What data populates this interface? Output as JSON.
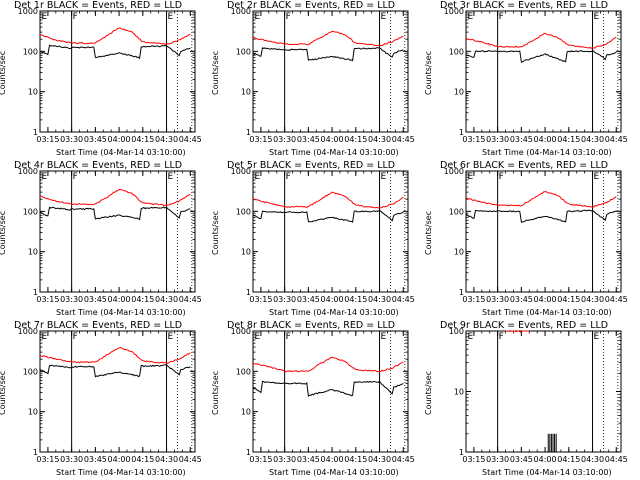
{
  "chart_data": [
    {
      "type": "line",
      "title": "Det 1r BLACK = Events, RED = LLD",
      "ylabel": "Counts/sec",
      "xlabel": "Start Time (04-Mar-14 03:10:00)",
      "x_ticks": [
        "03:15",
        "03:30",
        "03:45",
        "04:00",
        "04:15",
        "04:30",
        "04:45"
      ],
      "y_ticks": [
        "1",
        "10",
        "100",
        "1000"
      ],
      "y_scale": "log",
      "ylim": [
        1,
        1000
      ],
      "markers": [
        {
          "label": "E",
          "time": "03:10"
        },
        {
          "label": "F",
          "time": "03:30"
        },
        {
          "label": "E",
          "time": "04:30"
        }
      ],
      "series": [
        {
          "name": "BLACK = Events",
          "color": "#000000",
          "x": [
            "03:10",
            "03:15",
            "03:16",
            "03:29",
            "03:30",
            "03:44",
            "03:45",
            "04:00",
            "04:13",
            "04:14",
            "04:29",
            "04:30",
            "04:38",
            "04:39",
            "04:45"
          ],
          "y": [
            100,
            85,
            140,
            120,
            125,
            125,
            70,
            90,
            70,
            130,
            135,
            135,
            80,
            100,
            120
          ]
        },
        {
          "name": "RED = LLD",
          "color": "#ff0000",
          "x": [
            "03:10",
            "03:20",
            "03:30",
            "03:45",
            "03:52",
            "04:00",
            "04:08",
            "04:15",
            "04:30",
            "04:38",
            "04:45"
          ],
          "y": [
            260,
            190,
            160,
            160,
            240,
            380,
            300,
            170,
            150,
            190,
            270
          ]
        }
      ]
    },
    {
      "type": "line",
      "title": "Det 2r BLACK = Events, RED = LLD",
      "ylabel": "Counts/sec",
      "xlabel": "Start Time (04-Mar-14 03:10:00)",
      "x_ticks": [
        "03:15",
        "03:30",
        "03:45",
        "04:00",
        "04:15",
        "04:30",
        "04:45"
      ],
      "y_ticks": [
        "1",
        "10",
        "100",
        "1000"
      ],
      "y_scale": "log",
      "ylim": [
        1,
        1000
      ],
      "markers": [
        {
          "label": "E",
          "time": "03:10"
        },
        {
          "label": "F",
          "time": "03:30"
        },
        {
          "label": "E",
          "time": "04:30"
        }
      ],
      "series": [
        {
          "name": "BLACK = Events",
          "color": "#000000",
          "x": [
            "03:10",
            "03:15",
            "03:16",
            "03:29",
            "03:30",
            "03:44",
            "03:45",
            "04:00",
            "04:13",
            "04:14",
            "04:29",
            "04:30",
            "04:38",
            "04:39",
            "04:45"
          ],
          "y": [
            90,
            75,
            120,
            110,
            110,
            110,
            60,
            75,
            60,
            115,
            120,
            120,
            70,
            90,
            110
          ]
        },
        {
          "name": "RED = LLD",
          "color": "#ff0000",
          "x": [
            "03:10",
            "03:20",
            "03:30",
            "03:45",
            "03:52",
            "04:00",
            "04:08",
            "04:15",
            "04:30",
            "04:38",
            "04:45"
          ],
          "y": [
            220,
            180,
            150,
            150,
            210,
            320,
            260,
            160,
            140,
            170,
            240
          ]
        }
      ]
    },
    {
      "type": "line",
      "title": "Det 3r BLACK = Events, RED = LLD",
      "ylabel": "Counts/sec",
      "xlabel": "Start Time (04-Mar-14 03:10:00)",
      "x_ticks": [
        "03:15",
        "03:30",
        "03:45",
        "04:00",
        "04:15",
        "04:30",
        "04:45"
      ],
      "y_ticks": [
        "1",
        "10",
        "100",
        "1000"
      ],
      "y_scale": "log",
      "ylim": [
        1,
        1000
      ],
      "markers": [
        {
          "label": "E",
          "time": "03:10"
        },
        {
          "label": "F",
          "time": "03:30"
        },
        {
          "label": "E",
          "time": "04:30"
        }
      ],
      "series": [
        {
          "name": "BLACK = Events",
          "color": "#000000",
          "x": [
            "03:10",
            "03:15",
            "03:16",
            "03:29",
            "03:30",
            "03:44",
            "03:45",
            "04:00",
            "04:13",
            "04:14",
            "04:29",
            "04:30",
            "04:38",
            "04:39",
            "04:45"
          ],
          "y": [
            80,
            70,
            100,
            100,
            100,
            100,
            55,
            85,
            55,
            100,
            100,
            105,
            65,
            80,
            95
          ]
        },
        {
          "name": "RED = LLD",
          "color": "#ff0000",
          "x": [
            "03:10",
            "03:20",
            "03:30",
            "03:45",
            "03:52",
            "04:00",
            "04:08",
            "04:15",
            "04:30",
            "04:38",
            "04:45"
          ],
          "y": [
            210,
            170,
            130,
            130,
            180,
            280,
            220,
            140,
            120,
            150,
            220
          ]
        }
      ]
    },
    {
      "type": "line",
      "title": "Det 4r BLACK = Events, RED = LLD",
      "ylabel": "Counts/sec",
      "xlabel": "Start Time (04-Mar-14 03:10:00)",
      "x_ticks": [
        "03:15",
        "03:30",
        "03:45",
        "04:00",
        "04:15",
        "04:30",
        "04:45"
      ],
      "y_ticks": [
        "1",
        "10",
        "100",
        "1000"
      ],
      "y_scale": "log",
      "ylim": [
        1,
        1000
      ],
      "markers": [
        {
          "label": "E",
          "time": "03:10"
        },
        {
          "label": "F",
          "time": "03:30"
        },
        {
          "label": "E",
          "time": "04:30"
        }
      ],
      "series": [
        {
          "name": "BLACK = Events",
          "color": "#000000",
          "x": [
            "03:10",
            "03:15",
            "03:16",
            "03:29",
            "03:30",
            "03:44",
            "03:45",
            "04:00",
            "04:13",
            "04:14",
            "04:29",
            "04:30",
            "04:38",
            "04:39",
            "04:45"
          ],
          "y": [
            95,
            75,
            125,
            110,
            115,
            115,
            65,
            80,
            65,
            120,
            125,
            125,
            70,
            95,
            115
          ]
        },
        {
          "name": "RED = LLD",
          "color": "#ff0000",
          "x": [
            "03:10",
            "03:20",
            "03:30",
            "03:45",
            "03:52",
            "04:00",
            "04:08",
            "04:15",
            "04:30",
            "04:38",
            "04:45"
          ],
          "y": [
            240,
            180,
            150,
            150,
            220,
            350,
            280,
            160,
            140,
            180,
            260
          ]
        }
      ]
    },
    {
      "type": "line",
      "title": "Det 5r BLACK = Events, RED = LLD",
      "ylabel": "Counts/sec",
      "xlabel": "Start Time (04-Mar-14 03:10:00)",
      "x_ticks": [
        "03:15",
        "03:30",
        "03:45",
        "04:00",
        "04:15",
        "04:30",
        "04:45"
      ],
      "y_ticks": [
        "1",
        "10",
        "100",
        "1000"
      ],
      "y_scale": "log",
      "ylim": [
        1,
        1000
      ],
      "markers": [
        {
          "label": "E",
          "time": "03:10"
        },
        {
          "label": "F",
          "time": "03:30"
        },
        {
          "label": "E",
          "time": "04:30"
        }
      ],
      "series": [
        {
          "name": "BLACK = Events",
          "color": "#000000",
          "x": [
            "03:10",
            "03:15",
            "03:16",
            "03:29",
            "03:30",
            "03:44",
            "03:45",
            "04:00",
            "04:13",
            "04:14",
            "04:29",
            "04:30",
            "04:38",
            "04:39",
            "04:45"
          ],
          "y": [
            80,
            65,
            100,
            95,
            95,
            95,
            55,
            70,
            55,
            100,
            100,
            105,
            60,
            80,
            95
          ]
        },
        {
          "name": "RED = LLD",
          "color": "#ff0000",
          "x": [
            "03:10",
            "03:20",
            "03:30",
            "03:45",
            "03:52",
            "04:00",
            "04:08",
            "04:15",
            "04:30",
            "04:38",
            "04:45"
          ],
          "y": [
            200,
            160,
            130,
            130,
            190,
            300,
            240,
            140,
            120,
            150,
            220
          ]
        }
      ]
    },
    {
      "type": "line",
      "title": "Det 6r BLACK = Events, RED = LLD",
      "ylabel": "Counts/sec",
      "xlabel": "Start Time (04-Mar-14 03:10:00)",
      "x_ticks": [
        "03:15",
        "03:30",
        "03:45",
        "04:00",
        "04:15",
        "04:30",
        "04:45"
      ],
      "y_ticks": [
        "1",
        "10",
        "100",
        "1000"
      ],
      "y_scale": "log",
      "ylim": [
        1,
        1000
      ],
      "markers": [
        {
          "label": "E",
          "time": "03:10"
        },
        {
          "label": "F",
          "time": "03:30"
        },
        {
          "label": "E",
          "time": "04:30"
        }
      ],
      "series": [
        {
          "name": "BLACK = Events",
          "color": "#000000",
          "x": [
            "03:10",
            "03:15",
            "03:16",
            "03:29",
            "03:30",
            "03:44",
            "03:45",
            "04:00",
            "04:13",
            "04:14",
            "04:29",
            "04:30",
            "04:38",
            "04:39",
            "04:45"
          ],
          "y": [
            85,
            65,
            105,
            100,
            100,
            100,
            55,
            75,
            55,
            100,
            105,
            105,
            60,
            85,
            100
          ]
        },
        {
          "name": "RED = LLD",
          "color": "#ff0000",
          "x": [
            "03:10",
            "03:20",
            "03:30",
            "03:45",
            "03:52",
            "04:00",
            "04:08",
            "04:15",
            "04:30",
            "04:38",
            "04:45"
          ],
          "y": [
            210,
            170,
            140,
            140,
            200,
            310,
            250,
            150,
            130,
            160,
            230
          ]
        }
      ]
    },
    {
      "type": "line",
      "title": "Det 7r BLACK = Events, RED = LLD",
      "ylabel": "Counts/sec",
      "xlabel": "Start Time (04-Mar-14 03:10:00)",
      "x_ticks": [
        "03:15",
        "03:30",
        "03:45",
        "04:00",
        "04:15",
        "04:30",
        "04:45"
      ],
      "y_ticks": [
        "1",
        "10",
        "100",
        "1000"
      ],
      "y_scale": "log",
      "ylim": [
        1,
        1000
      ],
      "markers": [
        {
          "label": "E",
          "time": "03:10"
        },
        {
          "label": "F",
          "time": "03:30"
        },
        {
          "label": "E",
          "time": "04:30"
        }
      ],
      "series": [
        {
          "name": "BLACK = Events",
          "color": "#000000",
          "x": [
            "03:10",
            "03:15",
            "03:16",
            "03:29",
            "03:30",
            "03:44",
            "03:45",
            "04:00",
            "04:13",
            "04:14",
            "04:29",
            "04:30",
            "04:38",
            "04:39",
            "04:45"
          ],
          "y": [
            110,
            90,
            140,
            125,
            130,
            130,
            75,
            95,
            75,
            135,
            140,
            140,
            85,
            110,
            130
          ]
        },
        {
          "name": "RED = LLD",
          "color": "#ff0000",
          "x": [
            "03:10",
            "03:20",
            "03:30",
            "03:45",
            "03:52",
            "04:00",
            "04:08",
            "04:15",
            "04:30",
            "04:38",
            "04:45"
          ],
          "y": [
            250,
            200,
            170,
            170,
            250,
            390,
            310,
            180,
            160,
            200,
            290
          ]
        }
      ]
    },
    {
      "type": "line",
      "title": "Det 8r BLACK = Events, RED = LLD",
      "ylabel": "Counts/sec",
      "xlabel": "Start Time (04-Mar-14 03:10:00)",
      "x_ticks": [
        "03:15",
        "03:30",
        "03:45",
        "04:00",
        "04:15",
        "04:30",
        "04:45"
      ],
      "y_ticks": [
        "1",
        "10",
        "100",
        "1000"
      ],
      "y_scale": "log",
      "ylim": [
        1,
        1000
      ],
      "markers": [
        {
          "label": "E",
          "time": "03:10"
        },
        {
          "label": "F",
          "time": "03:30"
        },
        {
          "label": "E",
          "time": "04:30"
        }
      ],
      "series": [
        {
          "name": "BLACK = Events",
          "color": "#000000",
          "x": [
            "03:10",
            "03:15",
            "03:16",
            "03:29",
            "03:30",
            "03:44",
            "03:45",
            "04:00",
            "04:13",
            "04:14",
            "04:29",
            "04:30",
            "04:38",
            "04:39",
            "04:45"
          ],
          "y": [
            40,
            30,
            55,
            50,
            50,
            50,
            25,
            35,
            25,
            55,
            55,
            55,
            28,
            40,
            50
          ]
        },
        {
          "name": "RED = LLD",
          "color": "#ff0000",
          "x": [
            "03:10",
            "03:20",
            "03:30",
            "03:45",
            "03:52",
            "04:00",
            "04:08",
            "04:15",
            "04:30",
            "04:38",
            "04:45"
          ],
          "y": [
            160,
            130,
            100,
            100,
            150,
            220,
            180,
            110,
            100,
            120,
            170
          ]
        }
      ]
    },
    {
      "type": "line",
      "title": "Det 9r BLACK = Events, RED = LLD",
      "ylabel": "Counts/sec",
      "xlabel": "Start Time (04-Mar-14 03:10:00)",
      "x_ticks": [
        "03:15",
        "03:30",
        "03:45",
        "04:00",
        "04:15",
        "04:30",
        "04:45"
      ],
      "y_ticks": [
        "1",
        "10",
        "100"
      ],
      "y_scale": "log",
      "ylim": [
        1,
        100
      ],
      "markers": [
        {
          "label": "E",
          "time": "03:10"
        },
        {
          "label": "F",
          "time": "03:30"
        },
        {
          "label": "E",
          "time": "04:30"
        }
      ],
      "series": [
        {
          "name": "BLACK = Events",
          "color": "#000000",
          "type": "spikes",
          "x": [
            "04:02",
            "04:03",
            "04:04",
            "04:05",
            "04:06",
            "04:07"
          ],
          "y": [
            2,
            2,
            2,
            2,
            2,
            2
          ]
        },
        {
          "name": "RED = LLD",
          "color": "#ff0000",
          "x": [
            "03:35",
            "03:50"
          ],
          "y": [
            100,
            100
          ]
        }
      ]
    }
  ]
}
